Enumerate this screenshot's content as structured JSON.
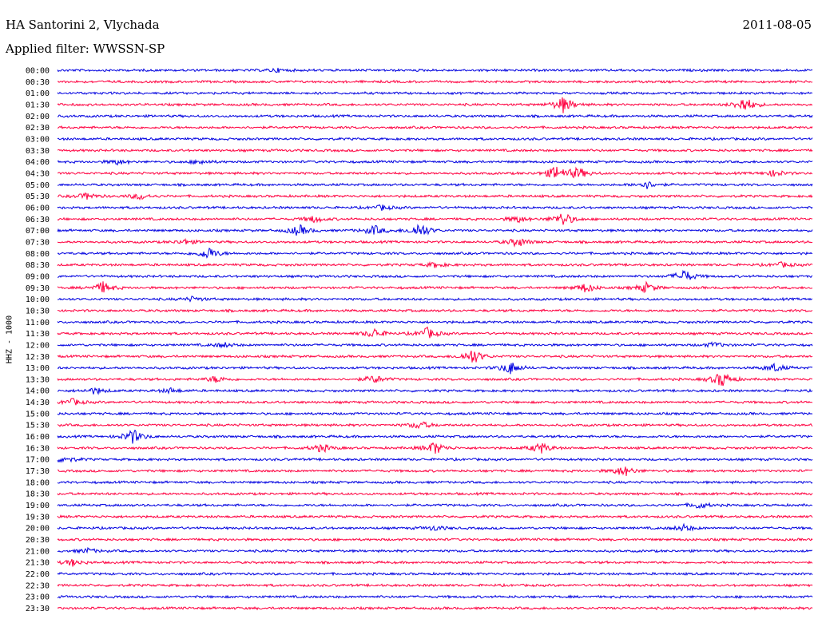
{
  "header": {
    "station": "HA Santorini 2, Vlychada",
    "date": "2011-08-05",
    "filter": "Applied filter: WWSSN-SP"
  },
  "chart_data": {
    "type": "line",
    "title": "HA Santorini 2, Vlychada",
    "subtitle": "Applied filter: WWSSN-SP",
    "ylabel": "HHZ - 1000",
    "xlabel": "",
    "colors": [
      "#0000e0",
      "#ff0040"
    ],
    "grid": false,
    "rows": [
      {
        "label": "00:00",
        "color": "#0000e0",
        "events": [
          {
            "pos": 0.29,
            "amp": 2
          }
        ]
      },
      {
        "label": "00:30",
        "color": "#ff0040",
        "events": []
      },
      {
        "label": "01:00",
        "color": "#0000e0",
        "events": []
      },
      {
        "label": "01:30",
        "color": "#ff0040",
        "events": [
          {
            "pos": 0.67,
            "amp": 10
          },
          {
            "pos": 0.91,
            "amp": 10
          }
        ]
      },
      {
        "label": "02:00",
        "color": "#0000e0",
        "events": []
      },
      {
        "label": "02:30",
        "color": "#ff0040",
        "events": []
      },
      {
        "label": "03:00",
        "color": "#0000e0",
        "events": []
      },
      {
        "label": "03:30",
        "color": "#ff0040",
        "events": []
      },
      {
        "label": "04:00",
        "color": "#0000e0",
        "events": [
          {
            "pos": 0.08,
            "amp": 3
          },
          {
            "pos": 0.19,
            "amp": 3
          }
        ]
      },
      {
        "label": "04:30",
        "color": "#ff0040",
        "events": [
          {
            "pos": 0.66,
            "amp": 9
          },
          {
            "pos": 0.69,
            "amp": 7
          },
          {
            "pos": 0.95,
            "amp": 4
          }
        ]
      },
      {
        "label": "05:00",
        "color": "#0000e0",
        "events": [
          {
            "pos": 0.78,
            "amp": 5
          }
        ]
      },
      {
        "label": "05:30",
        "color": "#ff0040",
        "events": [
          {
            "pos": 0.04,
            "amp": 4
          },
          {
            "pos": 0.11,
            "amp": 4
          }
        ]
      },
      {
        "label": "06:00",
        "color": "#0000e0",
        "events": [
          {
            "pos": 0.43,
            "amp": 3
          }
        ]
      },
      {
        "label": "06:30",
        "color": "#ff0040",
        "events": [
          {
            "pos": 0.34,
            "amp": 4
          },
          {
            "pos": 0.61,
            "amp": 4
          },
          {
            "pos": 0.67,
            "amp": 9
          }
        ]
      },
      {
        "label": "07:00",
        "color": "#0000e0",
        "events": [
          {
            "pos": 0.32,
            "amp": 7
          },
          {
            "pos": 0.42,
            "amp": 6
          },
          {
            "pos": 0.48,
            "amp": 10
          }
        ]
      },
      {
        "label": "07:30",
        "color": "#ff0040",
        "events": [
          {
            "pos": 0.17,
            "amp": 3
          },
          {
            "pos": 0.61,
            "amp": 6
          }
        ]
      },
      {
        "label": "08:00",
        "color": "#0000e0",
        "events": [
          {
            "pos": 0.2,
            "amp": 8
          }
        ]
      },
      {
        "label": "08:30",
        "color": "#ff0040",
        "events": [
          {
            "pos": 0.5,
            "amp": 3
          },
          {
            "pos": 0.96,
            "amp": 3
          }
        ]
      },
      {
        "label": "09:00",
        "color": "#0000e0",
        "events": [
          {
            "pos": 0.83,
            "amp": 8
          }
        ]
      },
      {
        "label": "09:30",
        "color": "#ff0040",
        "events": [
          {
            "pos": 0.06,
            "amp": 7
          },
          {
            "pos": 0.7,
            "amp": 6
          },
          {
            "pos": 0.78,
            "amp": 6
          }
        ]
      },
      {
        "label": "10:00",
        "color": "#0000e0",
        "events": [
          {
            "pos": 0.18,
            "amp": 3
          }
        ]
      },
      {
        "label": "10:30",
        "color": "#ff0040",
        "events": []
      },
      {
        "label": "11:00",
        "color": "#0000e0",
        "events": []
      },
      {
        "label": "11:30",
        "color": "#ff0040",
        "events": [
          {
            "pos": 0.42,
            "amp": 6
          },
          {
            "pos": 0.49,
            "amp": 7
          }
        ]
      },
      {
        "label": "12:00",
        "color": "#0000e0",
        "events": [
          {
            "pos": 0.22,
            "amp": 3
          },
          {
            "pos": 0.87,
            "amp": 3
          }
        ]
      },
      {
        "label": "12:30",
        "color": "#ff0040",
        "events": [
          {
            "pos": 0.55,
            "amp": 10
          }
        ]
      },
      {
        "label": "13:00",
        "color": "#0000e0",
        "events": [
          {
            "pos": 0.6,
            "amp": 8
          },
          {
            "pos": 0.95,
            "amp": 5
          }
        ]
      },
      {
        "label": "13:30",
        "color": "#ff0040",
        "events": [
          {
            "pos": 0.21,
            "amp": 4
          },
          {
            "pos": 0.42,
            "amp": 5
          },
          {
            "pos": 0.88,
            "amp": 10
          }
        ]
      },
      {
        "label": "14:00",
        "color": "#0000e0",
        "events": [
          {
            "pos": 0.05,
            "amp": 4
          },
          {
            "pos": 0.15,
            "amp": 3
          }
        ]
      },
      {
        "label": "14:30",
        "color": "#ff0040",
        "events": [
          {
            "pos": 0.02,
            "amp": 4
          }
        ]
      },
      {
        "label": "15:00",
        "color": "#0000e0",
        "events": []
      },
      {
        "label": "15:30",
        "color": "#ff0040",
        "events": [
          {
            "pos": 0.48,
            "amp": 5
          }
        ]
      },
      {
        "label": "16:00",
        "color": "#0000e0",
        "events": [
          {
            "pos": 0.1,
            "amp": 9
          }
        ]
      },
      {
        "label": "16:30",
        "color": "#ff0040",
        "events": [
          {
            "pos": 0.35,
            "amp": 5
          },
          {
            "pos": 0.5,
            "amp": 8
          },
          {
            "pos": 0.64,
            "amp": 7
          }
        ]
      },
      {
        "label": "17:00",
        "color": "#0000e0",
        "events": [
          {
            "pos": 0.01,
            "amp": 4
          }
        ]
      },
      {
        "label": "17:30",
        "color": "#ff0040",
        "events": [
          {
            "pos": 0.75,
            "amp": 7
          }
        ]
      },
      {
        "label": "18:00",
        "color": "#0000e0",
        "events": []
      },
      {
        "label": "18:30",
        "color": "#ff0040",
        "events": []
      },
      {
        "label": "19:00",
        "color": "#0000e0",
        "events": [
          {
            "pos": 0.85,
            "amp": 4
          }
        ]
      },
      {
        "label": "19:30",
        "color": "#ff0040",
        "events": []
      },
      {
        "label": "20:00",
        "color": "#0000e0",
        "events": [
          {
            "pos": 0.5,
            "amp": 3
          },
          {
            "pos": 0.83,
            "amp": 4
          }
        ]
      },
      {
        "label": "20:30",
        "color": "#ff0040",
        "events": []
      },
      {
        "label": "21:00",
        "color": "#0000e0",
        "events": [
          {
            "pos": 0.04,
            "amp": 3
          }
        ]
      },
      {
        "label": "21:30",
        "color": "#ff0040",
        "events": [
          {
            "pos": 0.02,
            "amp": 4
          }
        ]
      },
      {
        "label": "22:00",
        "color": "#0000e0",
        "events": []
      },
      {
        "label": "22:30",
        "color": "#ff0040",
        "events": []
      },
      {
        "label": "23:00",
        "color": "#0000e0",
        "events": []
      },
      {
        "label": "23:30",
        "color": "#ff0040",
        "events": []
      }
    ]
  }
}
